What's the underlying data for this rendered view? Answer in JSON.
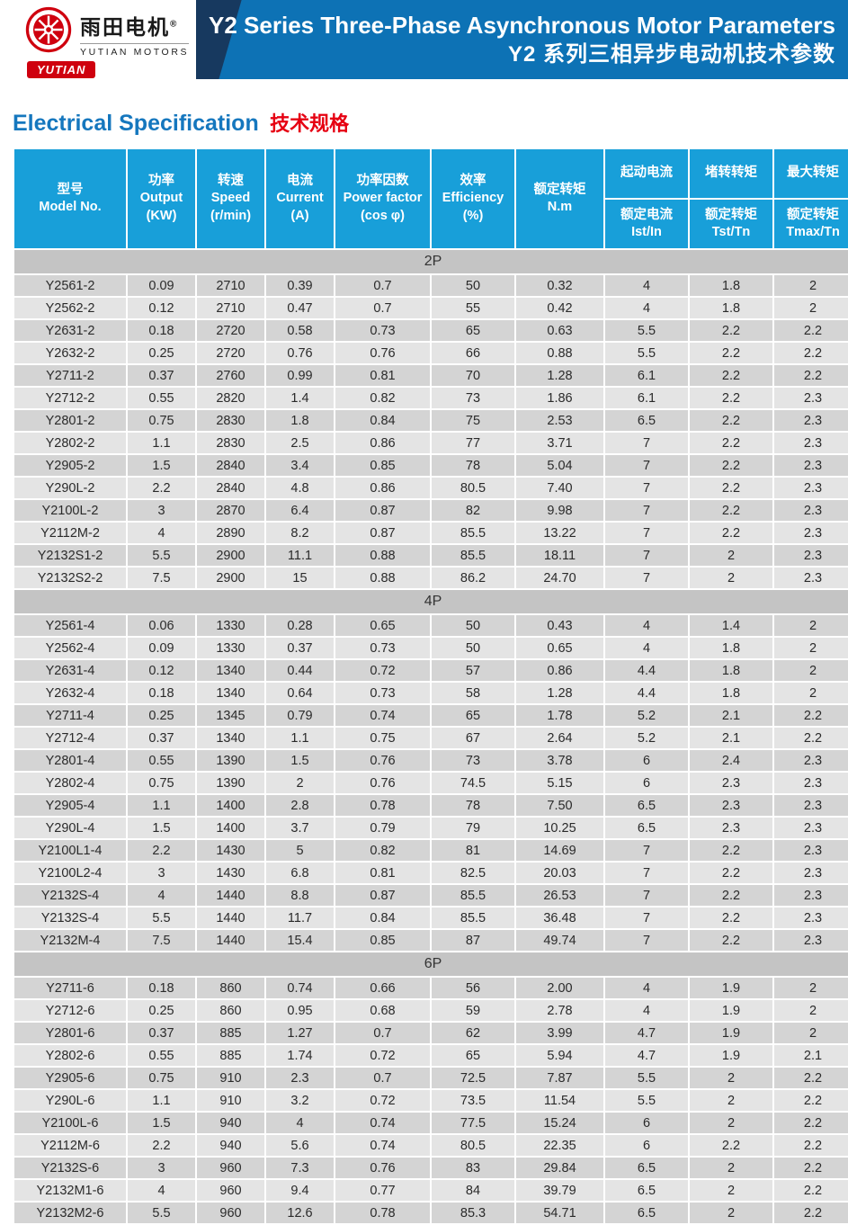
{
  "header": {
    "logo": {
      "brand_cn": "雨田电机",
      "reg_mark": "®",
      "brand_en": "YUTIAN MOTORS",
      "badge": "YUTIAN"
    },
    "title_en": "Y2 Series Three-Phase Asynchronous Motor Parameters",
    "title_cn": "Y2 系列三相异步电动机技术参数"
  },
  "section_heading": {
    "en": "Electrical Specification",
    "cn": "技术规格"
  },
  "colors": {
    "banner_blue": "#0d72b5",
    "banner_navy": "#17395f",
    "table_header_blue": "#189fd9",
    "brand_red": "#cf000e",
    "accent_red": "#e60012",
    "heading_blue": "#1577be",
    "section_row_gray": "#c4c4c4",
    "row_dark_gray": "#d4d4d4",
    "row_light_gray": "#e4e4e4"
  },
  "table": {
    "columns": [
      {
        "l1": "型号",
        "l2": "Model No."
      },
      {
        "l1": "功率",
        "l2": "Output",
        "l3": "(KW)"
      },
      {
        "l1": "转速",
        "l2": "Speed",
        "l3": "(r/min)"
      },
      {
        "l1": "电流",
        "l2": "Current",
        "l3": "(A)"
      },
      {
        "l1": "功率因数",
        "l2": "Power factor",
        "l3": "(cos φ)"
      },
      {
        "l1": "效率",
        "l2": "Efficiency",
        "l3": "(%)"
      },
      {
        "l1": "额定转矩",
        "l2": "N.m"
      },
      {
        "top": "起动电流",
        "b1": "额定电流",
        "b2": "Ist/In"
      },
      {
        "top": "堵转转矩",
        "b1": "额定转矩",
        "b2": "Tst/Tn"
      },
      {
        "top": "最大转矩",
        "b1": "额定转矩",
        "b2": "Tmax/Tn"
      }
    ],
    "groups": [
      {
        "label": "2P",
        "rows": [
          [
            "Y2561-2",
            "0.09",
            "2710",
            "0.39",
            "0.7",
            "50",
            "0.32",
            "4",
            "1.8",
            "2"
          ],
          [
            "Y2562-2",
            "0.12",
            "2710",
            "0.47",
            "0.7",
            "55",
            "0.42",
            "4",
            "1.8",
            "2"
          ],
          [
            "Y2631-2",
            "0.18",
            "2720",
            "0.58",
            "0.73",
            "65",
            "0.63",
            "5.5",
            "2.2",
            "2.2"
          ],
          [
            "Y2632-2",
            "0.25",
            "2720",
            "0.76",
            "0.76",
            "66",
            "0.88",
            "5.5",
            "2.2",
            "2.2"
          ],
          [
            "Y2711-2",
            "0.37",
            "2760",
            "0.99",
            "0.81",
            "70",
            "1.28",
            "6.1",
            "2.2",
            "2.2"
          ],
          [
            "Y2712-2",
            "0.55",
            "2820",
            "1.4",
            "0.82",
            "73",
            "1.86",
            "6.1",
            "2.2",
            "2.3"
          ],
          [
            "Y2801-2",
            "0.75",
            "2830",
            "1.8",
            "0.84",
            "75",
            "2.53",
            "6.5",
            "2.2",
            "2.3"
          ],
          [
            "Y2802-2",
            "1.1",
            "2830",
            "2.5",
            "0.86",
            "77",
            "3.71",
            "7",
            "2.2",
            "2.3"
          ],
          [
            "Y2905-2",
            "1.5",
            "2840",
            "3.4",
            "0.85",
            "78",
            "5.04",
            "7",
            "2.2",
            "2.3"
          ],
          [
            "Y290L-2",
            "2.2",
            "2840",
            "4.8",
            "0.86",
            "80.5",
            "7.40",
            "7",
            "2.2",
            "2.3"
          ],
          [
            "Y2100L-2",
            "3",
            "2870",
            "6.4",
            "0.87",
            "82",
            "9.98",
            "7",
            "2.2",
            "2.3"
          ],
          [
            "Y2112M-2",
            "4",
            "2890",
            "8.2",
            "0.87",
            "85.5",
            "13.22",
            "7",
            "2.2",
            "2.3"
          ],
          [
            "Y2132S1-2",
            "5.5",
            "2900",
            "11.1",
            "0.88",
            "85.5",
            "18.11",
            "7",
            "2",
            "2.3"
          ],
          [
            "Y2132S2-2",
            "7.5",
            "2900",
            "15",
            "0.88",
            "86.2",
            "24.70",
            "7",
            "2",
            "2.3"
          ]
        ]
      },
      {
        "label": "4P",
        "rows": [
          [
            "Y2561-4",
            "0.06",
            "1330",
            "0.28",
            "0.65",
            "50",
            "0.43",
            "4",
            "1.4",
            "2"
          ],
          [
            "Y2562-4",
            "0.09",
            "1330",
            "0.37",
            "0.73",
            "50",
            "0.65",
            "4",
            "1.8",
            "2"
          ],
          [
            "Y2631-4",
            "0.12",
            "1340",
            "0.44",
            "0.72",
            "57",
            "0.86",
            "4.4",
            "1.8",
            "2"
          ],
          [
            "Y2632-4",
            "0.18",
            "1340",
            "0.64",
            "0.73",
            "58",
            "1.28",
            "4.4",
            "1.8",
            "2"
          ],
          [
            "Y2711-4",
            "0.25",
            "1345",
            "0.79",
            "0.74",
            "65",
            "1.78",
            "5.2",
            "2.1",
            "2.2"
          ],
          [
            "Y2712-4",
            "0.37",
            "1340",
            "1.1",
            "0.75",
            "67",
            "2.64",
            "5.2",
            "2.1",
            "2.2"
          ],
          [
            "Y2801-4",
            "0.55",
            "1390",
            "1.5",
            "0.76",
            "73",
            "3.78",
            "6",
            "2.4",
            "2.3"
          ],
          [
            "Y2802-4",
            "0.75",
            "1390",
            "2",
            "0.76",
            "74.5",
            "5.15",
            "6",
            "2.3",
            "2.3"
          ],
          [
            "Y2905-4",
            "1.1",
            "1400",
            "2.8",
            "0.78",
            "78",
            "7.50",
            "6.5",
            "2.3",
            "2.3"
          ],
          [
            "Y290L-4",
            "1.5",
            "1400",
            "3.7",
            "0.79",
            "79",
            "10.25",
            "6.5",
            "2.3",
            "2.3"
          ],
          [
            "Y2100L1-4",
            "2.2",
            "1430",
            "5",
            "0.82",
            "81",
            "14.69",
            "7",
            "2.2",
            "2.3"
          ],
          [
            "Y2100L2-4",
            "3",
            "1430",
            "6.8",
            "0.81",
            "82.5",
            "20.03",
            "7",
            "2.2",
            "2.3"
          ],
          [
            "Y2132S-4",
            "4",
            "1440",
            "8.8",
            "0.87",
            "85.5",
            "26.53",
            "7",
            "2.2",
            "2.3"
          ],
          [
            "Y2132S-4",
            "5.5",
            "1440",
            "11.7",
            "0.84",
            "85.5",
            "36.48",
            "7",
            "2.2",
            "2.3"
          ],
          [
            "Y2132M-4",
            "7.5",
            "1440",
            "15.4",
            "0.85",
            "87",
            "49.74",
            "7",
            "2.2",
            "2.3"
          ]
        ]
      },
      {
        "label": "6P",
        "rows": [
          [
            "Y2711-6",
            "0.18",
            "860",
            "0.74",
            "0.66",
            "56",
            "2.00",
            "4",
            "1.9",
            "2"
          ],
          [
            "Y2712-6",
            "0.25",
            "860",
            "0.95",
            "0.68",
            "59",
            "2.78",
            "4",
            "1.9",
            "2"
          ],
          [
            "Y2801-6",
            "0.37",
            "885",
            "1.27",
            "0.7",
            "62",
            "3.99",
            "4.7",
            "1.9",
            "2"
          ],
          [
            "Y2802-6",
            "0.55",
            "885",
            "1.74",
            "0.72",
            "65",
            "5.94",
            "4.7",
            "1.9",
            "2.1"
          ],
          [
            "Y2905-6",
            "0.75",
            "910",
            "2.3",
            "0.7",
            "72.5",
            "7.87",
            "5.5",
            "2",
            "2.2"
          ],
          [
            "Y290L-6",
            "1.1",
            "910",
            "3.2",
            "0.72",
            "73.5",
            "11.54",
            "5.5",
            "2",
            "2.2"
          ],
          [
            "Y2100L-6",
            "1.5",
            "940",
            "4",
            "0.74",
            "77.5",
            "15.24",
            "6",
            "2",
            "2.2"
          ],
          [
            "Y2112M-6",
            "2.2",
            "940",
            "5.6",
            "0.74",
            "80.5",
            "22.35",
            "6",
            "2.2",
            "2.2"
          ],
          [
            "Y2132S-6",
            "3",
            "960",
            "7.3",
            "0.76",
            "83",
            "29.84",
            "6.5",
            "2",
            "2.2"
          ],
          [
            "Y2132M1-6",
            "4",
            "960",
            "9.4",
            "0.77",
            "84",
            "39.79",
            "6.5",
            "2",
            "2.2"
          ],
          [
            "Y2132M2-6",
            "5.5",
            "960",
            "12.6",
            "0.78",
            "85.3",
            "54.71",
            "6.5",
            "2",
            "2.2"
          ]
        ]
      }
    ]
  }
}
